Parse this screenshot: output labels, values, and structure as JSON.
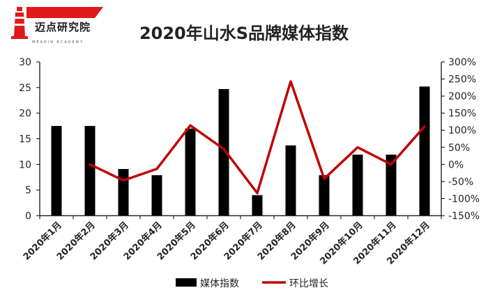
{
  "brand": {
    "name": "迈点研究院",
    "tagline": "MEADIN ACADEMY",
    "colors": {
      "red": "#e0191b",
      "dark": "#1a1a1a"
    }
  },
  "chart_data": {
    "type": "bar",
    "title": "2020年山水S品牌媒体指数",
    "categories": [
      "2020年1月",
      "2020年2月",
      "2020年3月",
      "2020年4月",
      "2020年5月",
      "2020年6月",
      "2020年7月",
      "2020年8月",
      "2020年9月",
      "2020年10月",
      "2020年11月",
      "2020年12月"
    ],
    "series": [
      {
        "name": "媒体指数",
        "type": "bar",
        "axis": "left",
        "color": "#000000",
        "values": [
          17.5,
          17.5,
          9.1,
          7.9,
          17.0,
          24.7,
          4.0,
          13.7,
          7.9,
          11.9,
          11.9,
          25.2
        ]
      },
      {
        "name": "环比增长",
        "type": "line",
        "axis": "right",
        "color": "#c00000",
        "values": [
          null,
          0,
          -47,
          -13,
          114,
          45,
          -84,
          243,
          -42,
          50,
          0,
          111
        ]
      }
    ],
    "y_left": {
      "min": 0,
      "max": 30,
      "ticks": [
        "0",
        "5",
        "10",
        "15",
        "20",
        "25",
        "30"
      ]
    },
    "y_right": {
      "min": -150,
      "max": 300,
      "ticks": [
        "-150%",
        "-100%",
        "-50%",
        "0%",
        "50%",
        "100%",
        "150%",
        "200%",
        "250%",
        "300%"
      ]
    },
    "legend": {
      "position": "bottom",
      "items": [
        "媒体指数",
        "环比增长"
      ]
    },
    "grid": false
  }
}
